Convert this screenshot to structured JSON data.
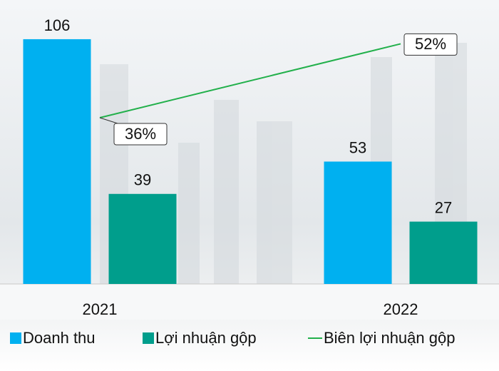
{
  "chart_data": {
    "type": "bar",
    "categories": [
      "2021",
      "2022"
    ],
    "series": [
      {
        "name": "Doanh thu",
        "color": "#00b0f0",
        "values": [
          106,
          53
        ]
      },
      {
        "name": "Lợi nhuận gộp",
        "color": "#009e8c",
        "values": [
          39,
          27
        ]
      },
      {
        "name": "Biên lợi nhuận gộp",
        "type": "line",
        "axis": "y2",
        "color": "#22b04b",
        "values": [
          36,
          52
        ],
        "value_labels": [
          "36%",
          "52%"
        ]
      }
    ],
    "ylim": [
      0,
      110
    ],
    "y2lim": [
      0,
      55
    ],
    "legend": "bottom"
  }
}
